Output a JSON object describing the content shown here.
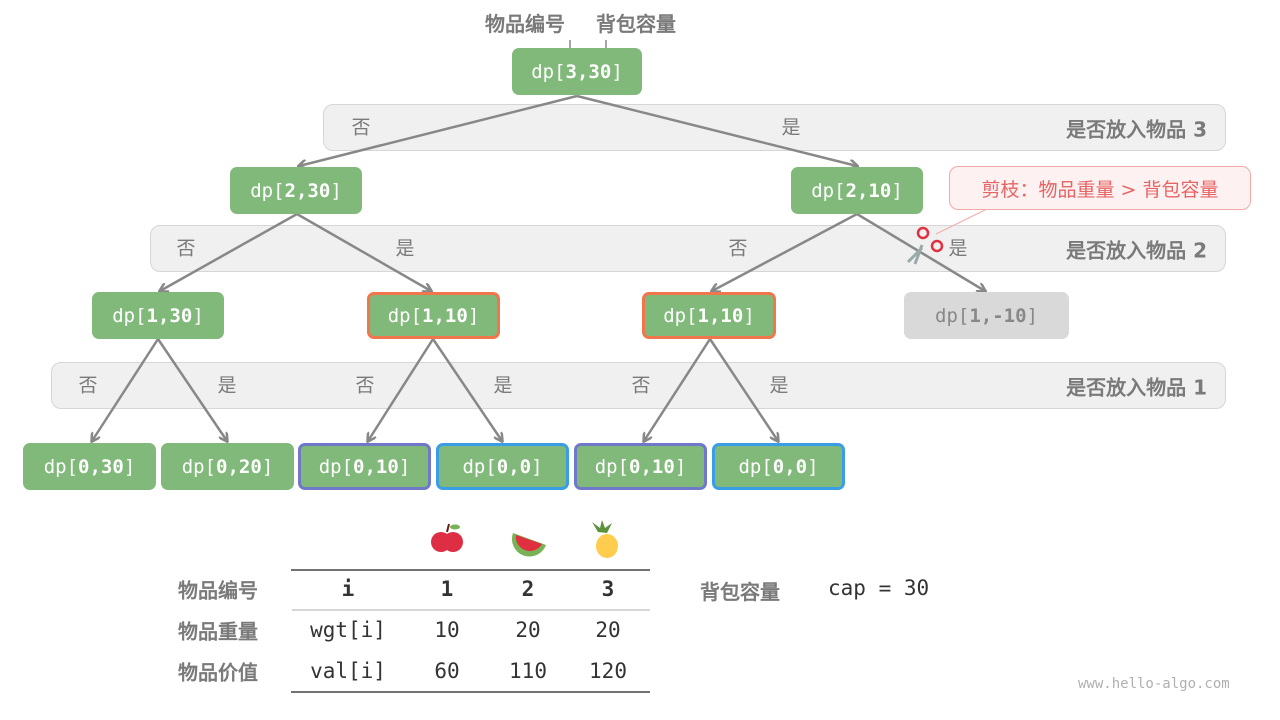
{
  "header": {
    "item_index_label": "物品编号",
    "capacity_label": "背包容量"
  },
  "bands": [
    {
      "label": "是否放入物品 3"
    },
    {
      "label": "是否放入物品 2"
    },
    {
      "label": "是否放入物品 1"
    }
  ],
  "choices": {
    "no": "否",
    "yes": "是"
  },
  "nodes": {
    "root": {
      "prefix": "dp[",
      "args": "3,30",
      "suffix": "]"
    },
    "n2_30": {
      "prefix": "dp[",
      "args": "2,30",
      "suffix": "]"
    },
    "n2_10": {
      "prefix": "dp[",
      "args": "2,10",
      "suffix": "]"
    },
    "n1_30": {
      "prefix": "dp[",
      "args": "1,30",
      "suffix": "]"
    },
    "n1_10a": {
      "prefix": "dp[",
      "args": "1,10",
      "suffix": "]"
    },
    "n1_10b": {
      "prefix": "dp[",
      "args": "1,10",
      "suffix": "]"
    },
    "n1_m10": {
      "prefix": "dp[",
      "args": "1,-10",
      "suffix": "]"
    },
    "n0_30": {
      "prefix": "dp[",
      "args": "0,30",
      "suffix": "]"
    },
    "n0_20": {
      "prefix": "dp[",
      "args": "0,20",
      "suffix": "]"
    },
    "n0_10a": {
      "prefix": "dp[",
      "args": "0,10",
      "suffix": "]"
    },
    "n0_0a": {
      "prefix": "dp[",
      "args": "0,0",
      "suffix": "]"
    },
    "n0_10b": {
      "prefix": "dp[",
      "args": "0,10",
      "suffix": "]"
    },
    "n0_0b": {
      "prefix": "dp[",
      "args": "0,0",
      "suffix": "]"
    }
  },
  "prune_callout": "剪枝：物品重量 > 背包容量",
  "colors": {
    "node": "#80b97a",
    "pruned": "#d9d9d9",
    "repeat_orange": "#f2764b",
    "repeat_purple": "#6f78c9",
    "repeat_blue": "#3a9ee6",
    "callout_text": "#e86464"
  },
  "table": {
    "icons": [
      "apple-icon",
      "watermelon-icon",
      "pineapple-icon"
    ],
    "rows": [
      {
        "label": "物品编号",
        "key": "i",
        "values": [
          "1",
          "2",
          "3"
        ]
      },
      {
        "label": "物品重量",
        "key": "wgt[i]",
        "values": [
          "10",
          "20",
          "20"
        ]
      },
      {
        "label": "物品价值",
        "key": "val[i]",
        "values": [
          "60",
          "110",
          "120"
        ]
      }
    ]
  },
  "capacity": {
    "label": "背包容量",
    "value": "cap = 30"
  },
  "watermark": "www.hello-algo.com"
}
